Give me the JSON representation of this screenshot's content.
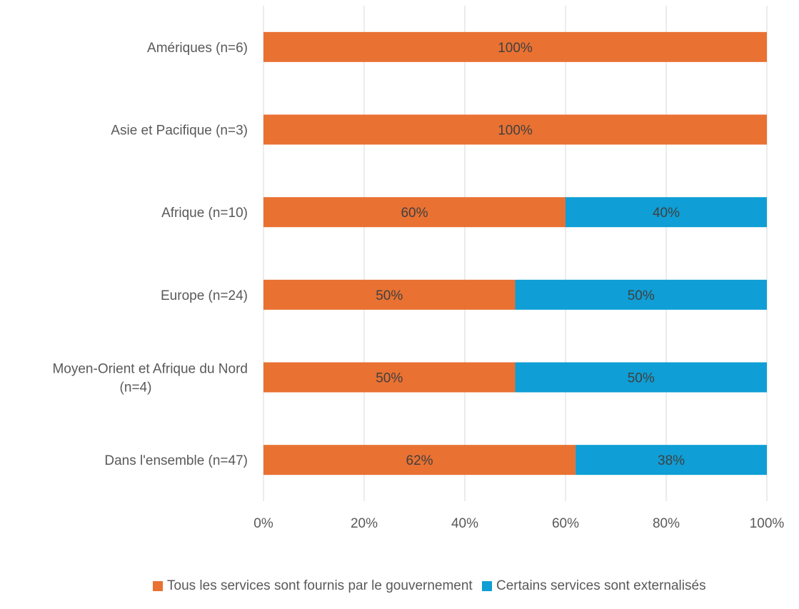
{
  "chart_data": {
    "type": "bar",
    "orientation": "horizontal",
    "stacked": true,
    "categories": [
      "Amériques (n=6)",
      "Asie et Pacifique (n=3)",
      "Afrique (n=10)",
      "Europe (n=24)",
      "Moyen-Orient et Afrique du Nord (n=4)",
      "Dans l'ensemble (n=47)"
    ],
    "series": [
      {
        "name": "Tous les services sont fournis par le gouvernement",
        "color": "#E97132",
        "values": [
          100,
          100,
          60,
          50,
          50,
          62
        ],
        "labels": [
          "100%",
          "100%",
          "60%",
          "50%",
          "50%",
          "62%"
        ]
      },
      {
        "name": "Certains services sont externalisés",
        "color": "#0F9ED5",
        "values": [
          0,
          0,
          40,
          50,
          50,
          38
        ],
        "labels": [
          "",
          "",
          "40%",
          "50%",
          "50%",
          "38%"
        ]
      }
    ],
    "x_ticks": [
      "0%",
      "20%",
      "40%",
      "60%",
      "80%",
      "100%"
    ],
    "xlim": [
      0,
      100
    ],
    "grid": true,
    "legend_position": "bottom"
  }
}
